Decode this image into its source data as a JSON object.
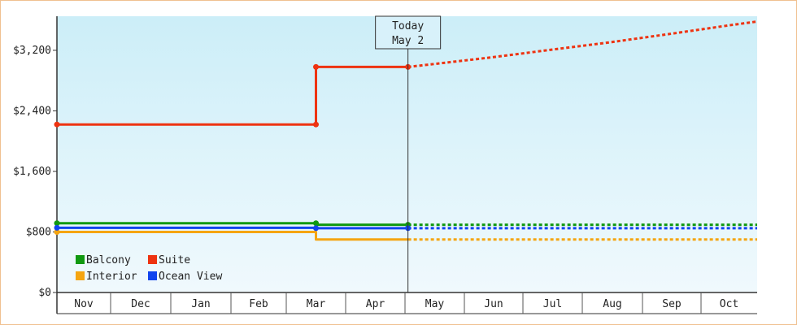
{
  "chart_data": {
    "type": "line",
    "title": "",
    "xlabel": "",
    "ylabel": "",
    "ylim": [
      0,
      3650
    ],
    "y_ticks": [
      {
        "value": 0,
        "label": "$0"
      },
      {
        "value": 800,
        "label": "$800"
      },
      {
        "value": 1600,
        "label": "$1,600"
      },
      {
        "value": 2400,
        "label": "$2,400"
      },
      {
        "value": 3200,
        "label": "$3,200"
      }
    ],
    "x_months": [
      "Nov",
      "Dec",
      "Jan",
      "Feb",
      "Mar",
      "Apr",
      "May",
      "Jun",
      "Jul",
      "Aug",
      "Sep",
      "Oct"
    ],
    "today": {
      "line1": "Today",
      "line2": "May 2",
      "month_pos": 6.05
    },
    "background_gradient": [
      "#cceef8",
      "#f0f9fd"
    ],
    "grid": false,
    "legend_placement": "bottom-left",
    "series": [
      {
        "name": "Balcony",
        "color": "#119911",
        "points": [
          [
            0,
            915
          ],
          [
            4.5,
            915
          ],
          [
            4.5,
            895
          ],
          [
            6.05,
            895
          ]
        ],
        "forecast": [
          [
            6.05,
            895
          ],
          [
            12,
            895
          ]
        ]
      },
      {
        "name": "Suite",
        "color": "#ee3311",
        "points": [
          [
            0,
            2220
          ],
          [
            4.5,
            2220
          ],
          [
            4.5,
            2980
          ],
          [
            6.05,
            2980
          ]
        ],
        "forecast": [
          [
            6.05,
            2980
          ],
          [
            6.5,
            3020
          ],
          [
            7.5,
            3110
          ],
          [
            8.5,
            3210
          ],
          [
            9.5,
            3310
          ],
          [
            10.5,
            3420
          ],
          [
            11.5,
            3530
          ],
          [
            12,
            3580
          ]
        ]
      },
      {
        "name": "Interior",
        "color": "#f5a511",
        "points": [
          [
            0,
            800
          ],
          [
            4.5,
            800
          ],
          [
            4.5,
            700
          ],
          [
            6.05,
            700
          ]
        ],
        "forecast": [
          [
            6.05,
            700
          ],
          [
            12,
            700
          ]
        ]
      },
      {
        "name": "Ocean View",
        "color": "#1144ee",
        "points": [
          [
            0,
            855
          ],
          [
            4.5,
            855
          ],
          [
            4.5,
            850
          ],
          [
            6.05,
            850
          ]
        ],
        "forecast": [
          [
            6.05,
            850
          ],
          [
            12,
            850
          ]
        ]
      }
    ],
    "markers": {
      "Balcony": [
        [
          0,
          915
        ],
        [
          4.5,
          915
        ],
        [
          6.05,
          895
        ]
      ],
      "Suite": [
        [
          0,
          2220
        ],
        [
          4.5,
          2220
        ],
        [
          4.5,
          2980
        ],
        [
          6.05,
          2980
        ]
      ],
      "Interior": [
        [
          0,
          800
        ]
      ],
      "Ocean View": [
        [
          0,
          855
        ],
        [
          4.5,
          850
        ],
        [
          6.05,
          850
        ]
      ]
    }
  }
}
